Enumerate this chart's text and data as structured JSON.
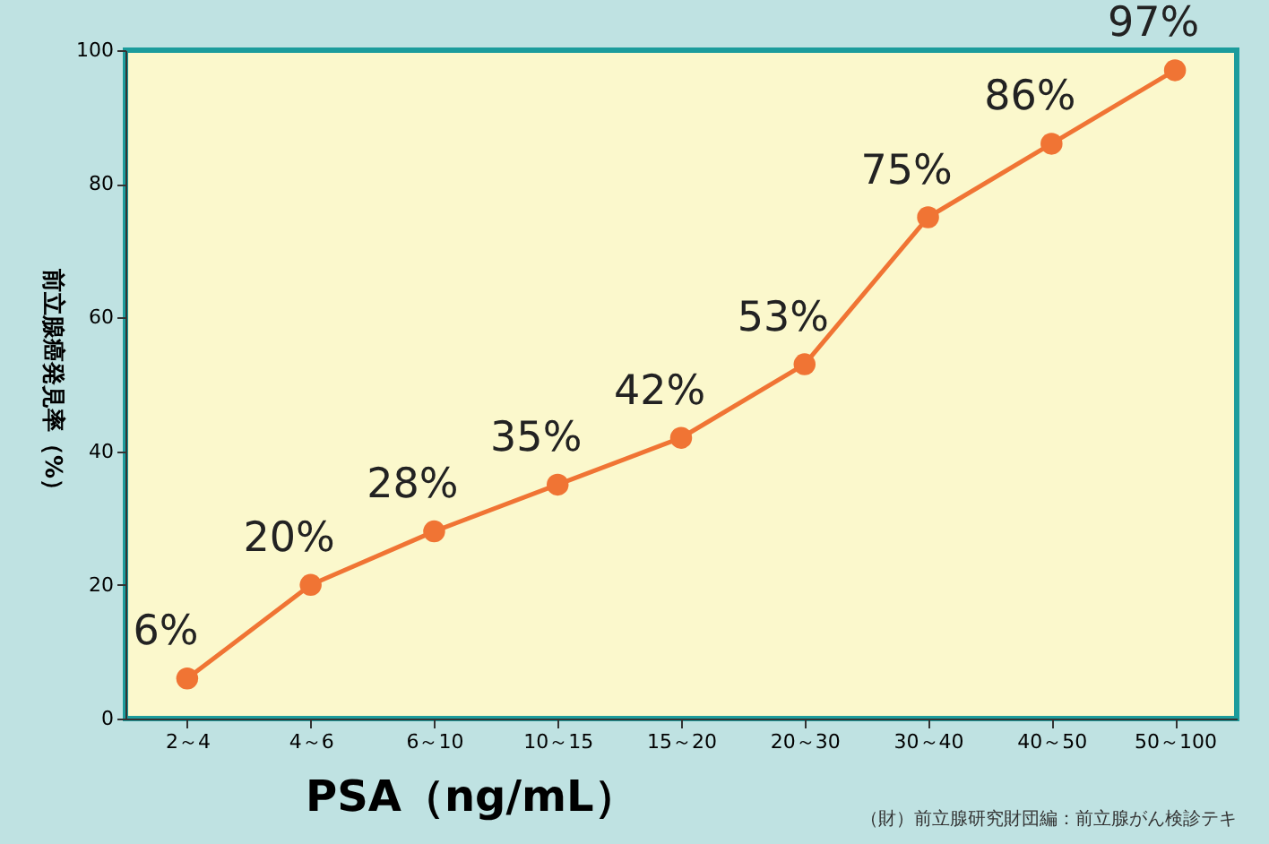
{
  "chart_data": {
    "type": "line",
    "categories": [
      "2～4",
      "4～6",
      "6～10",
      "10～15",
      "15～20",
      "20～30",
      "30～40",
      "40～50",
      "50～100"
    ],
    "series": [
      {
        "color": "#f07434",
        "values": [
          6,
          20,
          28,
          35,
          42,
          53,
          75,
          86,
          97
        ]
      }
    ],
    "xlabel": "PSA（ng/mL）",
    "ylabel": "前立腺癌発見率（%）",
    "ylim": [
      0,
      100
    ],
    "yticks": [
      0,
      20,
      40,
      60,
      80,
      100
    ],
    "value_labels": [
      "6%",
      "20%",
      "28%",
      "35%",
      "42%",
      "53%",
      "75%",
      "86%",
      "97%"
    ],
    "marker": "circle",
    "grid": false,
    "annotations": [
      "（財）前立腺研究財団編：前立腺がん検診テキ"
    ]
  }
}
